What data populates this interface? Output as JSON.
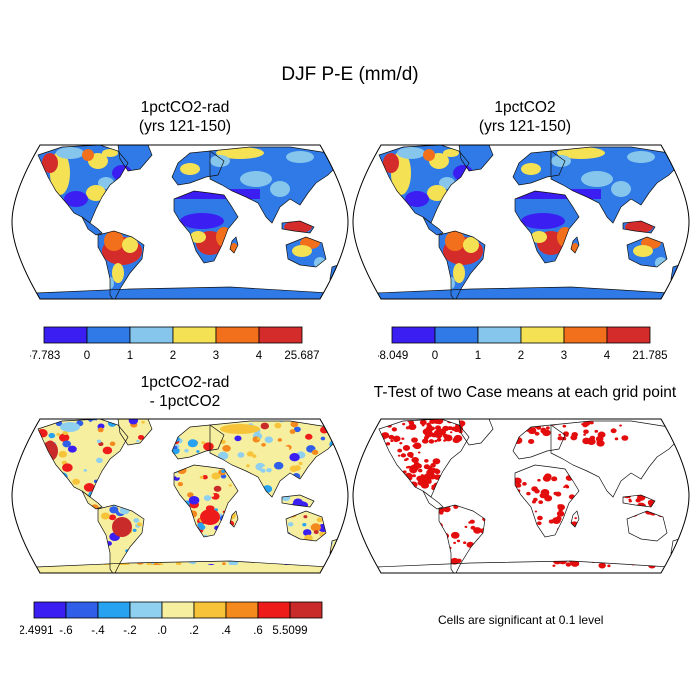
{
  "title": "DJF P-E (mm/d)",
  "panels": [
    {
      "title_line1": "1pctCO2-rad",
      "title_line2": "(yrs 121-150)",
      "colorbar": {
        "colors": [
          "#3b1ef2",
          "#2f7ae6",
          "#86c6ec",
          "#f5e154",
          "#f2701c",
          "#d42b2b"
        ],
        "labels": [
          "-7.783",
          "0",
          "1",
          "2",
          "3",
          "4",
          "25.687"
        ]
      }
    },
    {
      "title_line1": "1pctCO2",
      "title_line2": "(yrs 121-150)",
      "colorbar": {
        "colors": [
          "#3b1ef2",
          "#2f7ae6",
          "#86c6ec",
          "#f5e154",
          "#f2701c",
          "#d42b2b"
        ],
        "labels": [
          "-8.049",
          "0",
          "1",
          "2",
          "3",
          "4",
          "21.785"
        ]
      }
    },
    {
      "title_line1": "1pctCO2-rad",
      "title_line2": "- 1pctCO2",
      "colorbar": {
        "colors": [
          "#3b1ef2",
          "#2f5ee8",
          "#26a2f0",
          "#8fd0f0",
          "#f7efa0",
          "#f7c338",
          "#f48a1e",
          "#ee1b1b",
          "#c92a2a"
        ],
        "labels": [
          "-2.4991",
          "-.6",
          "-.4",
          "-.2",
          ".0",
          ".2",
          ".4",
          ".6",
          "5.5099"
        ]
      }
    },
    {
      "title_line1": "T-Test of two Case means at each grid point",
      "note": "Cells are significant at 0.1 level"
    }
  ],
  "colors": {
    "ocean": "#ffffff",
    "coast": "#111111",
    "significant": "#e30d0d"
  }
}
